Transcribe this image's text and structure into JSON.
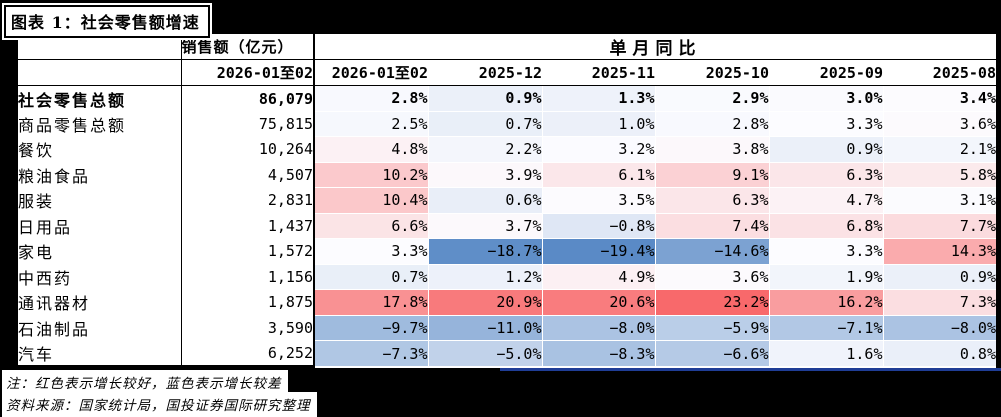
{
  "colors": {
    "page_background": "#000000",
    "table_background": "#FFFFFF",
    "border_black": "#000000",
    "rule_blue": "#1F3D96"
  },
  "chart_data": {
    "type": "table",
    "title": "图表 1：社会零售额增速",
    "sales_group_label": "销售额（亿元）",
    "yoy_group_label": "单月同比",
    "sales_period": "2026-01至02",
    "periods": [
      "2026-01至02",
      "2025-12",
      "2025-11",
      "2025-10",
      "2025-09",
      "2025-08"
    ],
    "rows": [
      {
        "label": "社会零售总额",
        "sales": "86,079",
        "yoy": [
          2.8,
          0.9,
          1.3,
          2.9,
          3.0,
          3.4
        ],
        "emphasis": true
      },
      {
        "label": "商品零售总额",
        "sales": "75,815",
        "yoy": [
          2.5,
          0.7,
          1.0,
          2.8,
          3.3,
          3.6
        ],
        "emphasis": false
      },
      {
        "label": "餐饮",
        "sales": "10,264",
        "yoy": [
          4.8,
          2.2,
          3.2,
          3.8,
          0.9,
          2.1
        ],
        "emphasis": false
      },
      {
        "label": "粮油食品",
        "sales": "4,507",
        "yoy": [
          10.2,
          3.9,
          6.1,
          9.1,
          6.3,
          5.8
        ],
        "emphasis": false
      },
      {
        "label": "服装",
        "sales": "2,831",
        "yoy": [
          10.4,
          0.6,
          3.5,
          6.3,
          4.7,
          3.1
        ],
        "emphasis": false
      },
      {
        "label": "日用品",
        "sales": "1,437",
        "yoy": [
          6.6,
          3.7,
          -0.8,
          7.4,
          6.8,
          7.7
        ],
        "emphasis": false
      },
      {
        "label": "家电",
        "sales": "1,572",
        "yoy": [
          3.3,
          -18.7,
          -19.4,
          -14.6,
          3.3,
          14.3
        ],
        "emphasis": false
      },
      {
        "label": "中西药",
        "sales": "1,156",
        "yoy": [
          0.7,
          1.2,
          4.9,
          3.6,
          1.9,
          0.9
        ],
        "emphasis": false
      },
      {
        "label": "通讯器材",
        "sales": "1,875",
        "yoy": [
          17.8,
          20.9,
          20.6,
          23.2,
          16.2,
          7.3
        ],
        "emphasis": false
      },
      {
        "label": "石油制品",
        "sales": "3,590",
        "yoy": [
          -9.7,
          -11.0,
          -8.0,
          -5.9,
          -7.1,
          -8.0
        ],
        "emphasis": false
      },
      {
        "label": "汽车",
        "sales": "6,252",
        "yoy": [
          -7.3,
          -5.0,
          -8.3,
          -6.6,
          1.6,
          0.8
        ],
        "emphasis": false
      }
    ],
    "heatmap": {
      "min": -19.4,
      "mid": 3.3,
      "max": 23.2,
      "min_color": "#5A8AC6",
      "mid_color": "#FCFCFF",
      "max_color": "#F8696B",
      "value_suffix": "%"
    },
    "notes": [
      "注：红色表示增长较好，蓝色表示增长较差",
      "资料来源：国家统计局，国投证券国际研究整理"
    ]
  }
}
